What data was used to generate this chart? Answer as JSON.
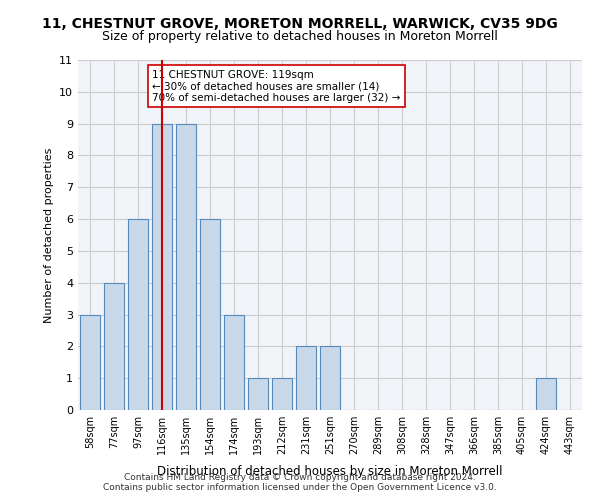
{
  "title_line1": "11, CHESTNUT GROVE, MORETON MORRELL, WARWICK, CV35 9DG",
  "title_line2": "Size of property relative to detached houses in Moreton Morrell",
  "xlabel": "Distribution of detached houses by size in Moreton Morrell",
  "ylabel": "Number of detached properties",
  "categories": [
    "58sqm",
    "77sqm",
    "97sqm",
    "116sqm",
    "135sqm",
    "154sqm",
    "174sqm",
    "193sqm",
    "212sqm",
    "231sqm",
    "251sqm",
    "270sqm",
    "289sqm",
    "308sqm",
    "328sqm",
    "347sqm",
    "366sqm",
    "385sqm",
    "405sqm",
    "424sqm",
    "443sqm"
  ],
  "values": [
    3,
    4,
    6,
    9,
    9,
    6,
    3,
    1,
    1,
    2,
    2,
    0,
    0,
    0,
    0,
    0,
    0,
    0,
    0,
    1,
    0
  ],
  "bar_color": "#c8d8e8",
  "bar_edge_color": "#5588bb",
  "vline_x": 3,
  "vline_color": "#cc0000",
  "annotation_text": "11 CHESTNUT GROVE: 119sqm\n← 30% of detached houses are smaller (14)\n70% of semi-detached houses are larger (32) →",
  "annotation_box_color": "#ffffff",
  "annotation_box_edge": "#cc0000",
  "ylim": [
    0,
    11
  ],
  "yticks": [
    0,
    1,
    2,
    3,
    4,
    5,
    6,
    7,
    8,
    9,
    10,
    11
  ],
  "grid_color": "#cccccc",
  "background_color": "#f0f4f8",
  "footer": "Contains HM Land Registry data © Crown copyright and database right 2024.\nContains public sector information licensed under the Open Government Licence v3.0."
}
